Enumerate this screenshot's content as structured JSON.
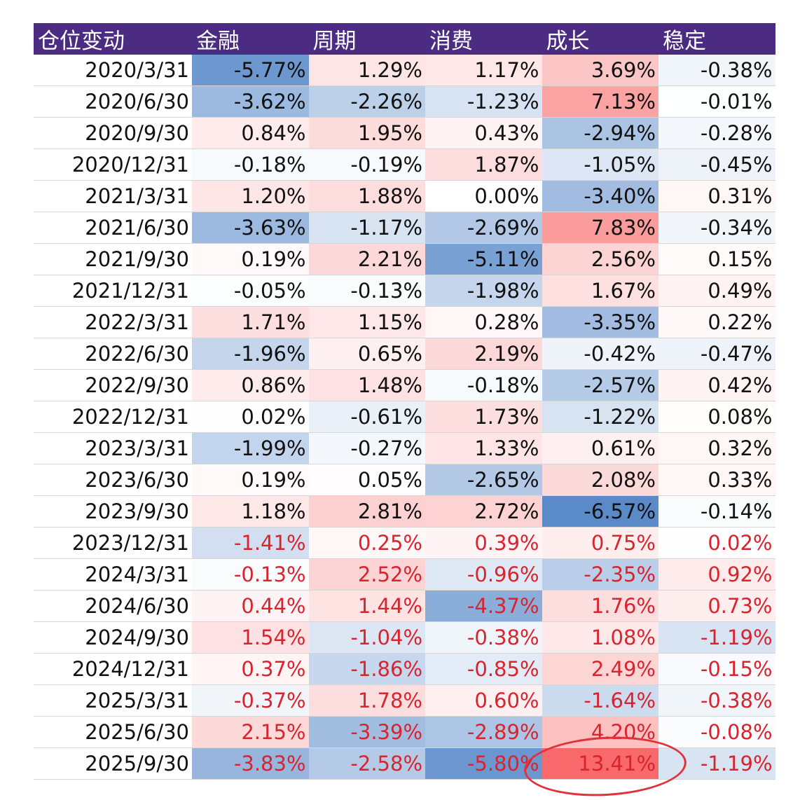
{
  "headers": [
    "仓位变动",
    "金融",
    "周期",
    "消费",
    "成长",
    "稳定"
  ],
  "colors": {
    "header_bg": "#4b2c82",
    "neg_color": "#5a8ac9",
    "pos_color": "#f8696b",
    "red_text": "#d9232d",
    "highlight_ellipse": "#e0323a"
  },
  "red_text_from_row": 15,
  "highlight": {
    "row": 22,
    "col": 4
  },
  "rows": [
    [
      "2020/3/31",
      "-5.77%",
      "1.29%",
      "1.17%",
      "3.69%",
      "-0.38%"
    ],
    [
      "2020/6/30",
      "-3.62%",
      "-2.26%",
      "-1.23%",
      "7.13%",
      "-0.01%"
    ],
    [
      "2020/9/30",
      "0.84%",
      "1.95%",
      "0.43%",
      "-2.94%",
      "-0.28%"
    ],
    [
      "2020/12/31",
      "-0.18%",
      "-0.19%",
      "1.87%",
      "-1.05%",
      "-0.45%"
    ],
    [
      "2021/3/31",
      "1.20%",
      "1.88%",
      "0.00%",
      "-3.40%",
      "0.31%"
    ],
    [
      "2021/6/30",
      "-3.63%",
      "-1.17%",
      "-2.69%",
      "7.83%",
      "-0.34%"
    ],
    [
      "2021/9/30",
      "0.19%",
      "2.21%",
      "-5.11%",
      "2.56%",
      "0.15%"
    ],
    [
      "2021/12/31",
      "-0.05%",
      "-0.13%",
      "-1.98%",
      "1.67%",
      "0.49%"
    ],
    [
      "2022/3/31",
      "1.71%",
      "1.15%",
      "0.28%",
      "-3.35%",
      "0.22%"
    ],
    [
      "2022/6/30",
      "-1.96%",
      "0.65%",
      "2.19%",
      "-0.42%",
      "-0.47%"
    ],
    [
      "2022/9/30",
      "0.86%",
      "1.48%",
      "-0.18%",
      "-2.57%",
      "0.42%"
    ],
    [
      "2022/12/31",
      "0.02%",
      "-0.61%",
      "1.73%",
      "-1.22%",
      "0.08%"
    ],
    [
      "2023/3/31",
      "-1.99%",
      "-0.27%",
      "1.33%",
      "0.61%",
      "0.32%"
    ],
    [
      "2023/6/30",
      "0.19%",
      "0.05%",
      "-2.65%",
      "2.08%",
      "0.33%"
    ],
    [
      "2023/9/30",
      "1.18%",
      "2.81%",
      "2.72%",
      "-6.57%",
      "-0.14%"
    ],
    [
      "2023/12/31",
      "-1.41%",
      "0.25%",
      "0.39%",
      "0.75%",
      "0.02%"
    ],
    [
      "2024/3/31",
      "-0.13%",
      "2.52%",
      "-0.96%",
      "-2.35%",
      "0.92%"
    ],
    [
      "2024/6/30",
      "0.44%",
      "1.44%",
      "-4.37%",
      "1.76%",
      "0.73%"
    ],
    [
      "2024/9/30",
      "1.54%",
      "-1.04%",
      "-0.38%",
      "1.08%",
      "-1.19%"
    ],
    [
      "2024/12/31",
      "0.37%",
      "-1.86%",
      "-0.85%",
      "2.49%",
      "-0.15%"
    ],
    [
      "2025/3/31",
      "-0.37%",
      "1.78%",
      "0.60%",
      "-1.64%",
      "-0.38%"
    ],
    [
      "2025/6/30",
      "2.15%",
      "-3.39%",
      "-2.89%",
      "4.20%",
      "-0.08%"
    ],
    [
      "2025/9/30",
      "-3.83%",
      "-2.58%",
      "-5.80%",
      "13.41%",
      "-1.19%"
    ]
  ]
}
